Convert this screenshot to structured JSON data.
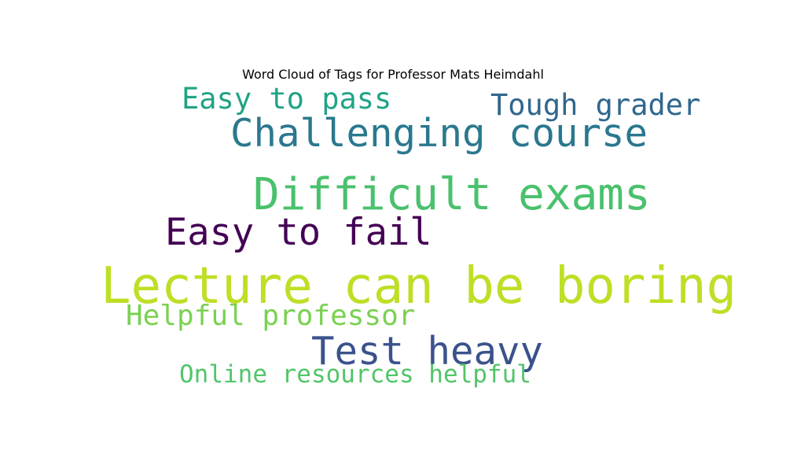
{
  "chart_data": {
    "type": "wordcloud",
    "title": "Word Cloud of Tags for Professor Mats Heimdahl",
    "words": [
      {
        "text": "Lecture can be boring",
        "weight": 1.0,
        "color": "#bddf26"
      },
      {
        "text": "Difficult exams",
        "weight": 0.88,
        "color": "#4ac16d"
      },
      {
        "text": "Challenging course",
        "weight": 0.76,
        "color": "#2a788e"
      },
      {
        "text": "Test heavy",
        "weight": 0.76,
        "color": "#3b528b"
      },
      {
        "text": "Easy to fail",
        "weight": 0.74,
        "color": "#440154"
      },
      {
        "text": "Tough grader",
        "weight": 0.58,
        "color": "#30678d"
      },
      {
        "text": "Easy to pass",
        "weight": 0.58,
        "color": "#20a386"
      },
      {
        "text": "Helpful professor",
        "weight": 0.56,
        "color": "#7ad151"
      },
      {
        "text": "Online resources helpful",
        "weight": 0.48,
        "color": "#52c569"
      }
    ]
  }
}
